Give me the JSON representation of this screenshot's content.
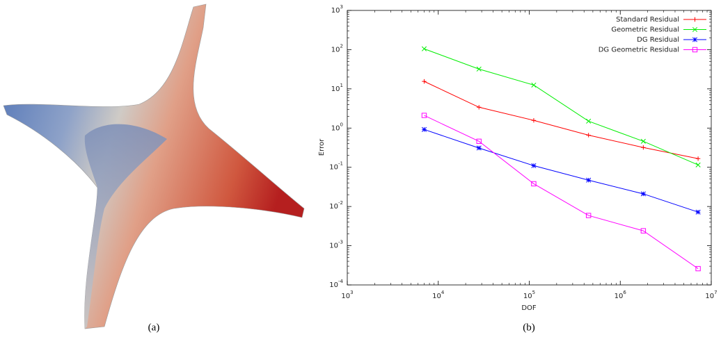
{
  "captions": [
    "(a)",
    "(b)"
  ],
  "chart_data": {
    "type": "line",
    "x_label": "DOF",
    "y_label": "Error",
    "xlog": true,
    "ylog": true,
    "legend": "top-right",
    "xlim": [
      1000,
      10000000
    ],
    "ylim": [
      0.0001,
      1000
    ],
    "xticks": [
      {
        "value": 1000,
        "label": "10^3"
      },
      {
        "value": 10000,
        "label": "10^4"
      },
      {
        "value": 100000,
        "label": "10^5"
      },
      {
        "value": 1000000,
        "label": "10^6"
      },
      {
        "value": 10000000,
        "label": "10^7"
      }
    ],
    "yticks": [
      {
        "value": 0.0001,
        "label": "10^-4"
      },
      {
        "value": 0.001,
        "label": "10^-3"
      },
      {
        "value": 0.01,
        "label": "10^-2"
      },
      {
        "value": 0.1,
        "label": "10^-1"
      },
      {
        "value": 1,
        "label": "10^0"
      },
      {
        "value": 10,
        "label": "10^1"
      },
      {
        "value": 100,
        "label": "10^2"
      },
      {
        "value": 1000,
        "label": "10^3"
      }
    ],
    "x": [
      7000,
      28000,
      112000,
      448000,
      1792000,
      7168000
    ],
    "series": [
      {
        "name": "Standard Residual",
        "color": "#ff0000",
        "marker": "plus",
        "values": [
          15.5,
          3.4,
          1.57,
          0.66,
          0.32,
          0.166
        ]
      },
      {
        "name": "Geometric Residual",
        "color": "#00ee00",
        "marker": "cross",
        "values": [
          105,
          32,
          12.5,
          1.5,
          0.46,
          0.115
        ]
      },
      {
        "name": "DG Residual",
        "color": "#0000ff",
        "marker": "star",
        "values": [
          0.92,
          0.31,
          0.11,
          0.047,
          0.021,
          0.0072
        ]
      },
      {
        "name": "DG Geometric Residual",
        "color": "#ff00ff",
        "marker": "square",
        "values": [
          2.1,
          0.46,
          0.038,
          0.0059,
          0.0024,
          0.00026
        ]
      }
    ]
  }
}
